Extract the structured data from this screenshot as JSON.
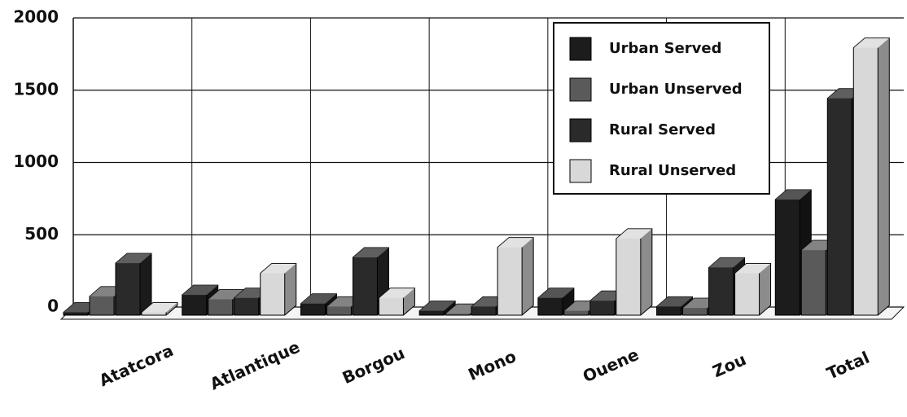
{
  "chart_data": {
    "type": "bar3d",
    "categories": [
      "Atatcora",
      "Atlantique",
      "Borgou",
      "Mono",
      "Ouene",
      "Zou",
      "Total"
    ],
    "series": [
      {
        "name": "Urban Served",
        "color": "#1c1c1c",
        "values": [
          20,
          140,
          80,
          30,
          120,
          60,
          800
        ]
      },
      {
        "name": "Urban Unserved",
        "color": "#5a5a5a",
        "values": [
          130,
          110,
          60,
          10,
          30,
          50,
          450
        ]
      },
      {
        "name": "Rural Served",
        "color": "#2a2a2a",
        "values": [
          360,
          120,
          400,
          60,
          100,
          330,
          1500
        ]
      },
      {
        "name": "Rural Unserved",
        "color": "#d8d8d8",
        "values": [
          20,
          290,
          120,
          470,
          530,
          290,
          1850
        ]
      }
    ],
    "ylim": [
      0,
      2000
    ],
    "yticks": [
      0,
      500,
      1000,
      1500,
      2000
    ],
    "grid": true
  }
}
